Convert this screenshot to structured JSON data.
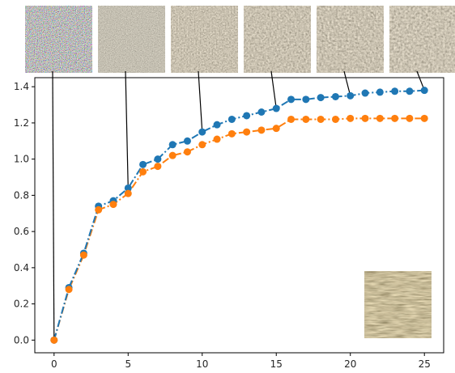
{
  "chart_data": {
    "type": "line",
    "title": "",
    "xlabel": "",
    "ylabel": "",
    "xlim": [
      -1.3,
      26.3
    ],
    "ylim": [
      -0.07,
      1.45
    ],
    "x_ticks": [
      0,
      5,
      10,
      15,
      20,
      25
    ],
    "x_tick_labels": [
      "0",
      "5",
      "10",
      "15",
      "20",
      "25"
    ],
    "y_ticks": [
      0.0,
      0.2,
      0.4,
      0.6,
      0.8,
      1.0,
      1.2,
      1.4
    ],
    "y_tick_labels": [
      "0.0",
      "0.2",
      "0.4",
      "0.6",
      "0.8",
      "1.0",
      "1.2",
      "1.4"
    ],
    "grid": false,
    "x": [
      0,
      1,
      2,
      3,
      4,
      5,
      6,
      7,
      8,
      9,
      10,
      11,
      12,
      13,
      14,
      15,
      16,
      17,
      18,
      19,
      20,
      21,
      22,
      23,
      24,
      25
    ],
    "series": [
      {
        "color": "#1f77b4",
        "style": "dash-dot",
        "values": [
          0.0,
          0.29,
          0.48,
          0.74,
          0.77,
          0.84,
          0.97,
          1.0,
          1.08,
          1.1,
          1.15,
          1.19,
          1.22,
          1.24,
          1.26,
          1.28,
          1.33,
          1.33,
          1.34,
          1.345,
          1.35,
          1.365,
          1.37,
          1.375,
          1.375,
          1.38
        ]
      },
      {
        "color": "#ff7f0e",
        "style": "dash-dot",
        "values": [
          0.0,
          0.28,
          0.47,
          0.72,
          0.75,
          0.81,
          0.93,
          0.96,
          1.02,
          1.04,
          1.08,
          1.11,
          1.14,
          1.15,
          1.16,
          1.17,
          1.22,
          1.22,
          1.22,
          1.22,
          1.225,
          1.225,
          1.225,
          1.225,
          1.225,
          1.225
        ]
      }
    ],
    "texture_thumbnails": [
      {
        "x": 0,
        "kind": "noise-icon"
      },
      {
        "x": 5,
        "kind": "texture-icon"
      },
      {
        "x": 10,
        "kind": "texture-icon"
      },
      {
        "x": 15,
        "kind": "texture-icon"
      },
      {
        "x": 20,
        "kind": "texture-icon"
      },
      {
        "x": 25,
        "kind": "texture-icon"
      }
    ],
    "reference_image": "straw-texture-icon"
  }
}
